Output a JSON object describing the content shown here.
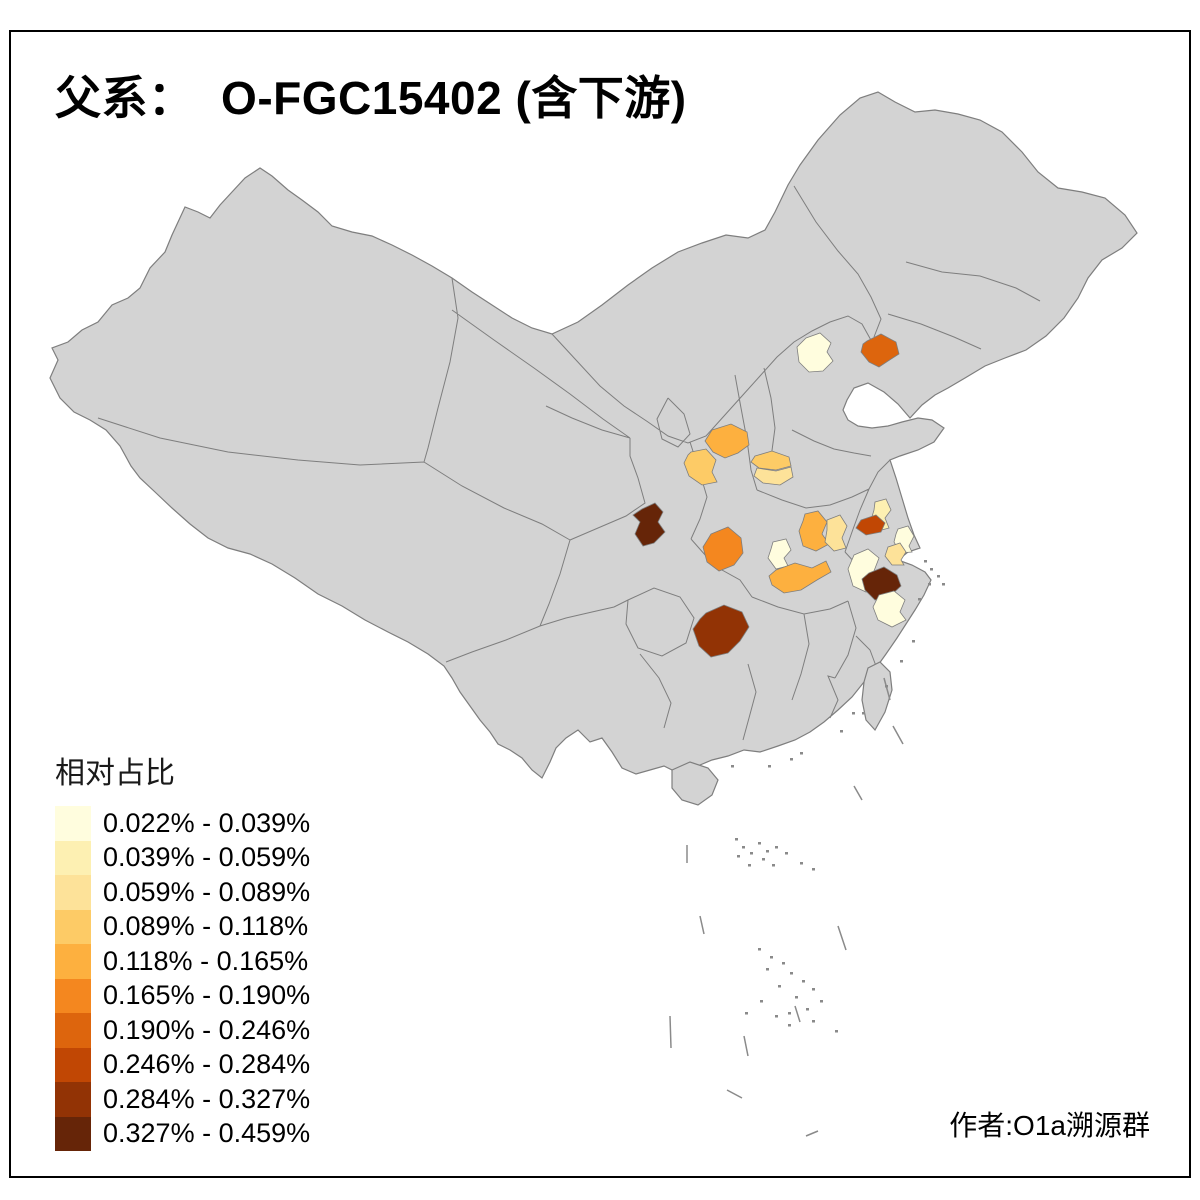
{
  "title": {
    "text": "父系：  O-FGC15402 (含下游)"
  },
  "legend": {
    "title": "相对占比",
    "classes": [
      {
        "range": "0.022% - 0.039%",
        "color": "#FFFDDE"
      },
      {
        "range": "0.039% - 0.059%",
        "color": "#FDF0B2"
      },
      {
        "range": "0.059% - 0.089%",
        "color": "#FDE299"
      },
      {
        "range": "0.089% - 0.118%",
        "color": "#FDCB66"
      },
      {
        "range": "0.118% - 0.165%",
        "color": "#FDB03F"
      },
      {
        "range": "0.165% - 0.190%",
        "color": "#F4871F"
      },
      {
        "range": "0.190% - 0.246%",
        "color": "#DD650D"
      },
      {
        "range": "0.246% - 0.284%",
        "color": "#C14704"
      },
      {
        "range": "0.284% - 0.327%",
        "color": "#923305"
      },
      {
        "range": "0.327% - 0.459%",
        "color": "#662508"
      }
    ]
  },
  "map": {
    "land_color": "#D3D3D3",
    "border_color": "#7E7E7E",
    "sea_color": "#FFFFFF",
    "island_color": "#8A8A8A",
    "regions": [
      {
        "id": "beijing",
        "class": 1
      },
      {
        "id": "liaoning-coast",
        "class": 7
      },
      {
        "id": "shaanxi-north",
        "class": 5
      },
      {
        "id": "gansu-east",
        "class": 4
      },
      {
        "id": "henan-west-upper",
        "class": 4
      },
      {
        "id": "henan-west-lower",
        "class": 3
      },
      {
        "id": "sichuan-north",
        "class": 10
      },
      {
        "id": "sichuan-east",
        "class": 6
      },
      {
        "id": "henan-south",
        "class": 5
      },
      {
        "id": "henan-southeast",
        "class": 3
      },
      {
        "id": "jiangsu-middle",
        "class": 2
      },
      {
        "id": "jiangsu-south",
        "class": 8
      },
      {
        "id": "hubei-central",
        "class": 1
      },
      {
        "id": "hubei-east",
        "class": 5
      },
      {
        "id": "anhui-south",
        "class": 1
      },
      {
        "id": "shanghai-west",
        "class": 1
      },
      {
        "id": "zhejiang-north",
        "class": 3
      },
      {
        "id": "zhejiang-hangzhou",
        "class": 10
      },
      {
        "id": "zhejiang-south",
        "class": 1
      },
      {
        "id": "hunan-west",
        "class": 9
      }
    ]
  },
  "attribution": {
    "text": "作者:O1a溯源群"
  }
}
